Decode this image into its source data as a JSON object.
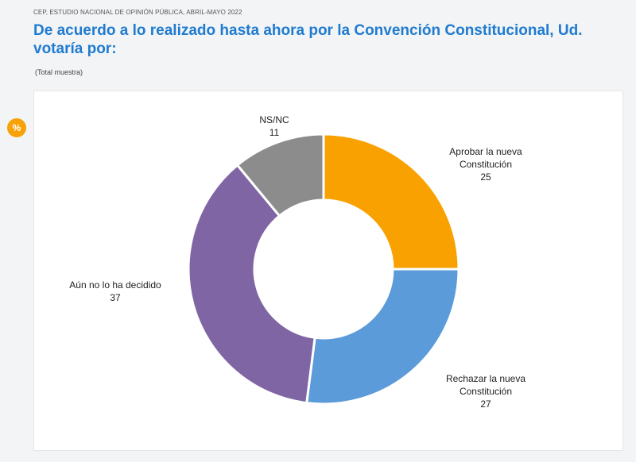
{
  "header": {
    "source": "CEP, ESTUDIO NACIONAL DE OPINIÓN PÚBLICA, ABRIL-MAYO 2022",
    "title": "De acuerdo a lo realizado hasta ahora por la Convención Constitucional, Ud. votaría por:",
    "subtitle": "(Total muestra)",
    "badge": "%"
  },
  "chart_data": {
    "type": "pie",
    "donut": true,
    "slices": [
      {
        "label_lines": [
          "Aprobar la nueva",
          "Constitución"
        ],
        "value": 25,
        "color": "#f9a100"
      },
      {
        "label_lines": [
          "Rechazar la nueva",
          "Constitución"
        ],
        "value": 27,
        "color": "#5b9bd9"
      },
      {
        "label_lines": [
          "Aún no lo ha decidido"
        ],
        "value": 37,
        "color": "#7f65a4"
      },
      {
        "label_lines": [
          "NS/NC"
        ],
        "value": 11,
        "color": "#8c8c8c"
      }
    ]
  }
}
